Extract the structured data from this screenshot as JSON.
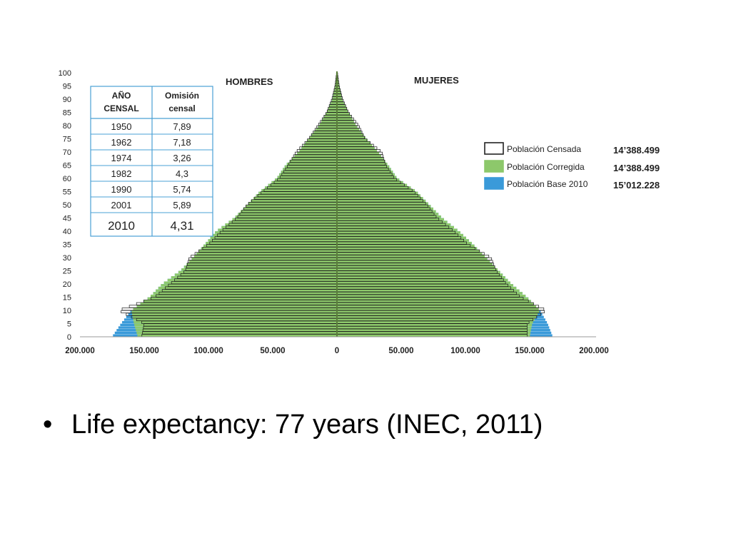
{
  "chart_data": {
    "type": "bar",
    "orientation": "horizontal-population-pyramid",
    "left_label": "HOMBRES",
    "right_label": "MUJERES",
    "y_ticks": [
      "0",
      "5",
      "10",
      "15",
      "20",
      "25",
      "30",
      "35",
      "40",
      "45",
      "50",
      "55",
      "60",
      "65",
      "70",
      "75",
      "80",
      "85",
      "90",
      "95",
      "100"
    ],
    "x_ticks": [
      "200.000",
      "150.000",
      "100.000",
      "50.000",
      "0",
      "50.000",
      "100.000",
      "150.000",
      "200.000"
    ],
    "xlim": [
      -200000,
      200000
    ],
    "ylim": [
      0,
      100
    ],
    "ages": [
      0,
      5,
      10,
      15,
      20,
      25,
      30,
      35,
      40,
      45,
      50,
      55,
      60,
      65,
      70,
      75,
      80,
      85,
      90,
      95,
      100
    ],
    "series": [
      {
        "name": "Población Censada",
        "color": "#ffffff",
        "men": [
          152000,
          150000,
          170000,
          142000,
          130000,
          118000,
          115000,
          100000,
          90000,
          78000,
          70000,
          58000,
          45000,
          38000,
          32000,
          22000,
          15000,
          8000,
          4000,
          1500,
          300
        ],
        "women": [
          148000,
          148000,
          163000,
          143000,
          132000,
          124000,
          120000,
          102000,
          91000,
          78000,
          70000,
          60000,
          45000,
          38000,
          35000,
          22000,
          17000,
          9000,
          4500,
          1800,
          400
        ]
      },
      {
        "name": "Población Corregida",
        "color": "#8dc86b",
        "men": [
          155000,
          158000,
          160000,
          146000,
          136000,
          122000,
          112000,
          103000,
          94000,
          80000,
          70000,
          60000,
          47000,
          40000,
          30000,
          22000,
          14000,
          8000,
          3500,
          1500,
          300
        ],
        "women": [
          150000,
          152000,
          158000,
          148000,
          136000,
          126000,
          116000,
          106000,
          95000,
          82000,
          72000,
          62000,
          47000,
          40000,
          32000,
          23000,
          15000,
          9000,
          4000,
          1800,
          400
        ]
      },
      {
        "name": "Población Base 2010",
        "color": "#3a9ad9",
        "men": [
          175000,
          168000,
          160000,
          146000,
          136000,
          122000,
          112000,
          103000,
          94000,
          80000,
          70000,
          60000,
          47000,
          40000,
          30000,
          22000,
          14000,
          8000,
          3500,
          1500,
          300
        ],
        "women": [
          168000,
          164000,
          158000,
          148000,
          136000,
          126000,
          116000,
          106000,
          95000,
          82000,
          72000,
          62000,
          47000,
          40000,
          32000,
          23000,
          15000,
          9000,
          4000,
          1800,
          400
        ]
      }
    ],
    "legend": [
      {
        "label": "Población Censada",
        "value": "14’388.499",
        "color": "#ffffff",
        "stroke": "#222222"
      },
      {
        "label": "Población Corregida",
        "value": "14’388.499",
        "color": "#8dc86b",
        "stroke": "#8dc86b"
      },
      {
        "label": "Población Base 2010",
        "value": "15’012.228",
        "color": "#3a9ad9",
        "stroke": "#3a9ad9"
      }
    ],
    "legend_position": "right",
    "grid": false
  },
  "table": {
    "header_col1": "AÑO CENSAL",
    "header_col2": "Omisión censal",
    "rows": [
      {
        "year": "1950",
        "value": "7,89"
      },
      {
        "year": "1962",
        "value": "7,18"
      },
      {
        "year": "1974",
        "value": "3,26"
      },
      {
        "year": "1982",
        "value": "4,3"
      },
      {
        "year": "1990",
        "value": "5,74"
      },
      {
        "year": "2001",
        "value": "5,89"
      },
      {
        "year": "2010",
        "value": "4,31"
      }
    ]
  },
  "bullet": {
    "symbol": "•",
    "text": "Life expectancy: 77 years (INEC, 2011)"
  }
}
